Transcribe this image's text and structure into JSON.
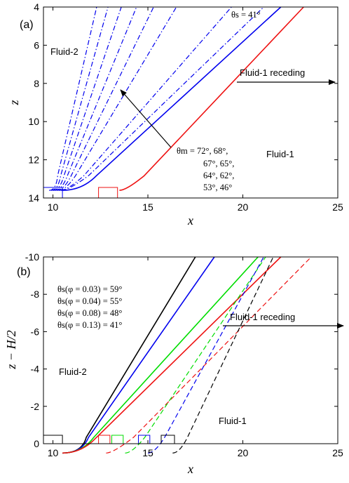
{
  "chart_data": [
    {
      "type": "line",
      "panel_label": "(a)",
      "xlabel": "x",
      "ylabel": "z",
      "xlim": [
        9.5,
        25
      ],
      "ylim": [
        14,
        4
      ],
      "y_reversed": true,
      "xticks": [
        10,
        15,
        20,
        25
      ],
      "yticks": [
        4,
        6,
        8,
        10,
        12,
        14
      ],
      "annotations": {
        "fluid2": "Fluid-2",
        "fluid1": "Fluid-1",
        "receding": "Fluid-1 receding",
        "theta_s": "θs = 41°",
        "theta_m_lines": [
          "θm = 72°, 68°,",
          "67°, 65°,",
          "64°, 62°,",
          "53°, 46°"
        ]
      },
      "colors": {
        "blue": "#0000ee",
        "red": "#ee1111",
        "black": "#000000"
      },
      "series": [
        {
          "style": "dashdot",
          "color": "#0000ee",
          "start_x": 9.8,
          "end_x": 12.3
        },
        {
          "style": "dashdot",
          "color": "#0000ee",
          "start_x": 9.9,
          "end_x": 12.9
        },
        {
          "style": "dashdot",
          "color": "#0000ee",
          "start_x": 10.0,
          "end_x": 13.6
        },
        {
          "style": "dashdot",
          "color": "#0000ee",
          "start_x": 10.1,
          "end_x": 14.4
        },
        {
          "style": "dashdot",
          "color": "#0000ee",
          "start_x": 10.2,
          "end_x": 15.3
        },
        {
          "style": "dashdot",
          "color": "#0000ee",
          "start_x": 10.3,
          "end_x": 16.5
        },
        {
          "style": "dashdot",
          "color": "#0000ee",
          "start_x": 10.4,
          "end_x": 19.4
        },
        {
          "style": "dashdot",
          "color": "#0000ee",
          "start_x": 10.45,
          "end_x": 21.1
        },
        {
          "style": "solid",
          "color": "#0000ee",
          "start_x": 10.5,
          "end_x": 22.0
        },
        {
          "style": "solid",
          "color": "#ee1111",
          "start_x": 13.5,
          "end_x": 23.2
        }
      ]
    },
    {
      "type": "line",
      "panel_label": "(b)",
      "xlabel": "x",
      "ylabel": "z − H/2",
      "xlim": [
        9.5,
        25
      ],
      "ylim": [
        0,
        -10
      ],
      "y_reversed": true,
      "xticks": [
        10,
        15,
        20,
        25
      ],
      "yticks": [
        0,
        -2,
        -4,
        -6,
        -8,
        -10
      ],
      "annotations": {
        "fluid2": "Fluid-2",
        "fluid1": "Fluid-1",
        "receding": "Fluid-1 receding",
        "theta_lines": [
          "θs(φ = 0.03) = 59°",
          "θs(φ = 0.04) = 55°",
          "θs(φ = 0.08) = 48°",
          "θs(φ = 0.13) = 41°"
        ]
      },
      "series": [
        {
          "style": "solid",
          "color": "#000000",
          "start_x": 10.5,
          "end_x": 17.5
        },
        {
          "style": "solid",
          "color": "#0000ee",
          "start_x": 10.5,
          "end_x": 18.5
        },
        {
          "style": "solid",
          "color": "#00dd00",
          "start_x": 10.5,
          "end_x": 20.8
        },
        {
          "style": "solid",
          "color": "#ee1111",
          "start_x": 10.5,
          "end_x": 22.0
        },
        {
          "style": "dashed",
          "color": "#ee1111",
          "start_x": 12.8,
          "end_x": 23.6
        },
        {
          "style": "dashed",
          "color": "#00dd00",
          "start_x": 13.8,
          "end_x": 21.2
        },
        {
          "style": "dashed",
          "color": "#0000ee",
          "start_x": 15.0,
          "end_x": 21.1
        },
        {
          "style": "dashed",
          "color": "#000000",
          "start_x": 16.3,
          "end_x": 21.6
        }
      ]
    }
  ]
}
